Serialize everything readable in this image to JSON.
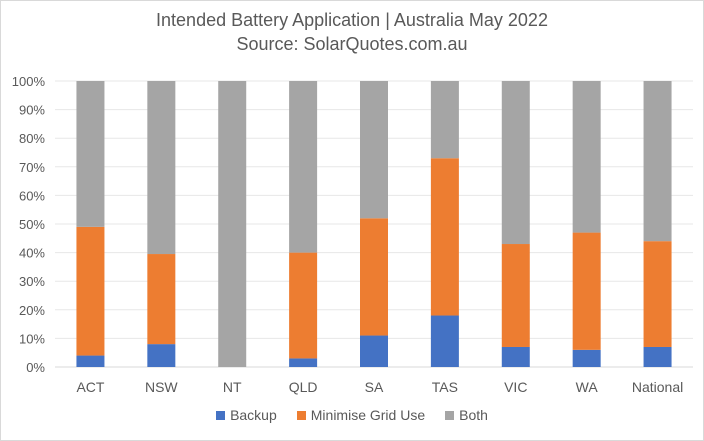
{
  "chart_data": {
    "type": "bar",
    "stacked": true,
    "normalized": true,
    "title": "Intended Battery Application | Australia May 2022",
    "subtitle": "Source: SolarQuotes.com.au",
    "categories": [
      "ACT",
      "NSW",
      "NT",
      "QLD",
      "SA",
      "TAS",
      "VIC",
      "WA",
      "National"
    ],
    "series": [
      {
        "name": "Backup",
        "color": "#4472c4",
        "values": [
          4,
          8,
          0,
          3,
          11,
          18,
          7,
          6,
          7
        ]
      },
      {
        "name": "Minimise Grid Use",
        "color": "#ed7d31",
        "values": [
          45,
          31.5,
          0,
          37,
          41,
          55,
          36,
          41,
          37
        ]
      },
      {
        "name": "Both",
        "color": "#a5a5a5",
        "values": [
          51,
          60.5,
          100,
          60,
          48,
          27,
          57,
          53,
          56
        ]
      }
    ],
    "y_ticks": [
      "0%",
      "10%",
      "20%",
      "30%",
      "40%",
      "50%",
      "60%",
      "70%",
      "80%",
      "90%",
      "100%"
    ],
    "ylim": [
      0,
      100
    ],
    "grid": true,
    "legend_position": "bottom"
  }
}
